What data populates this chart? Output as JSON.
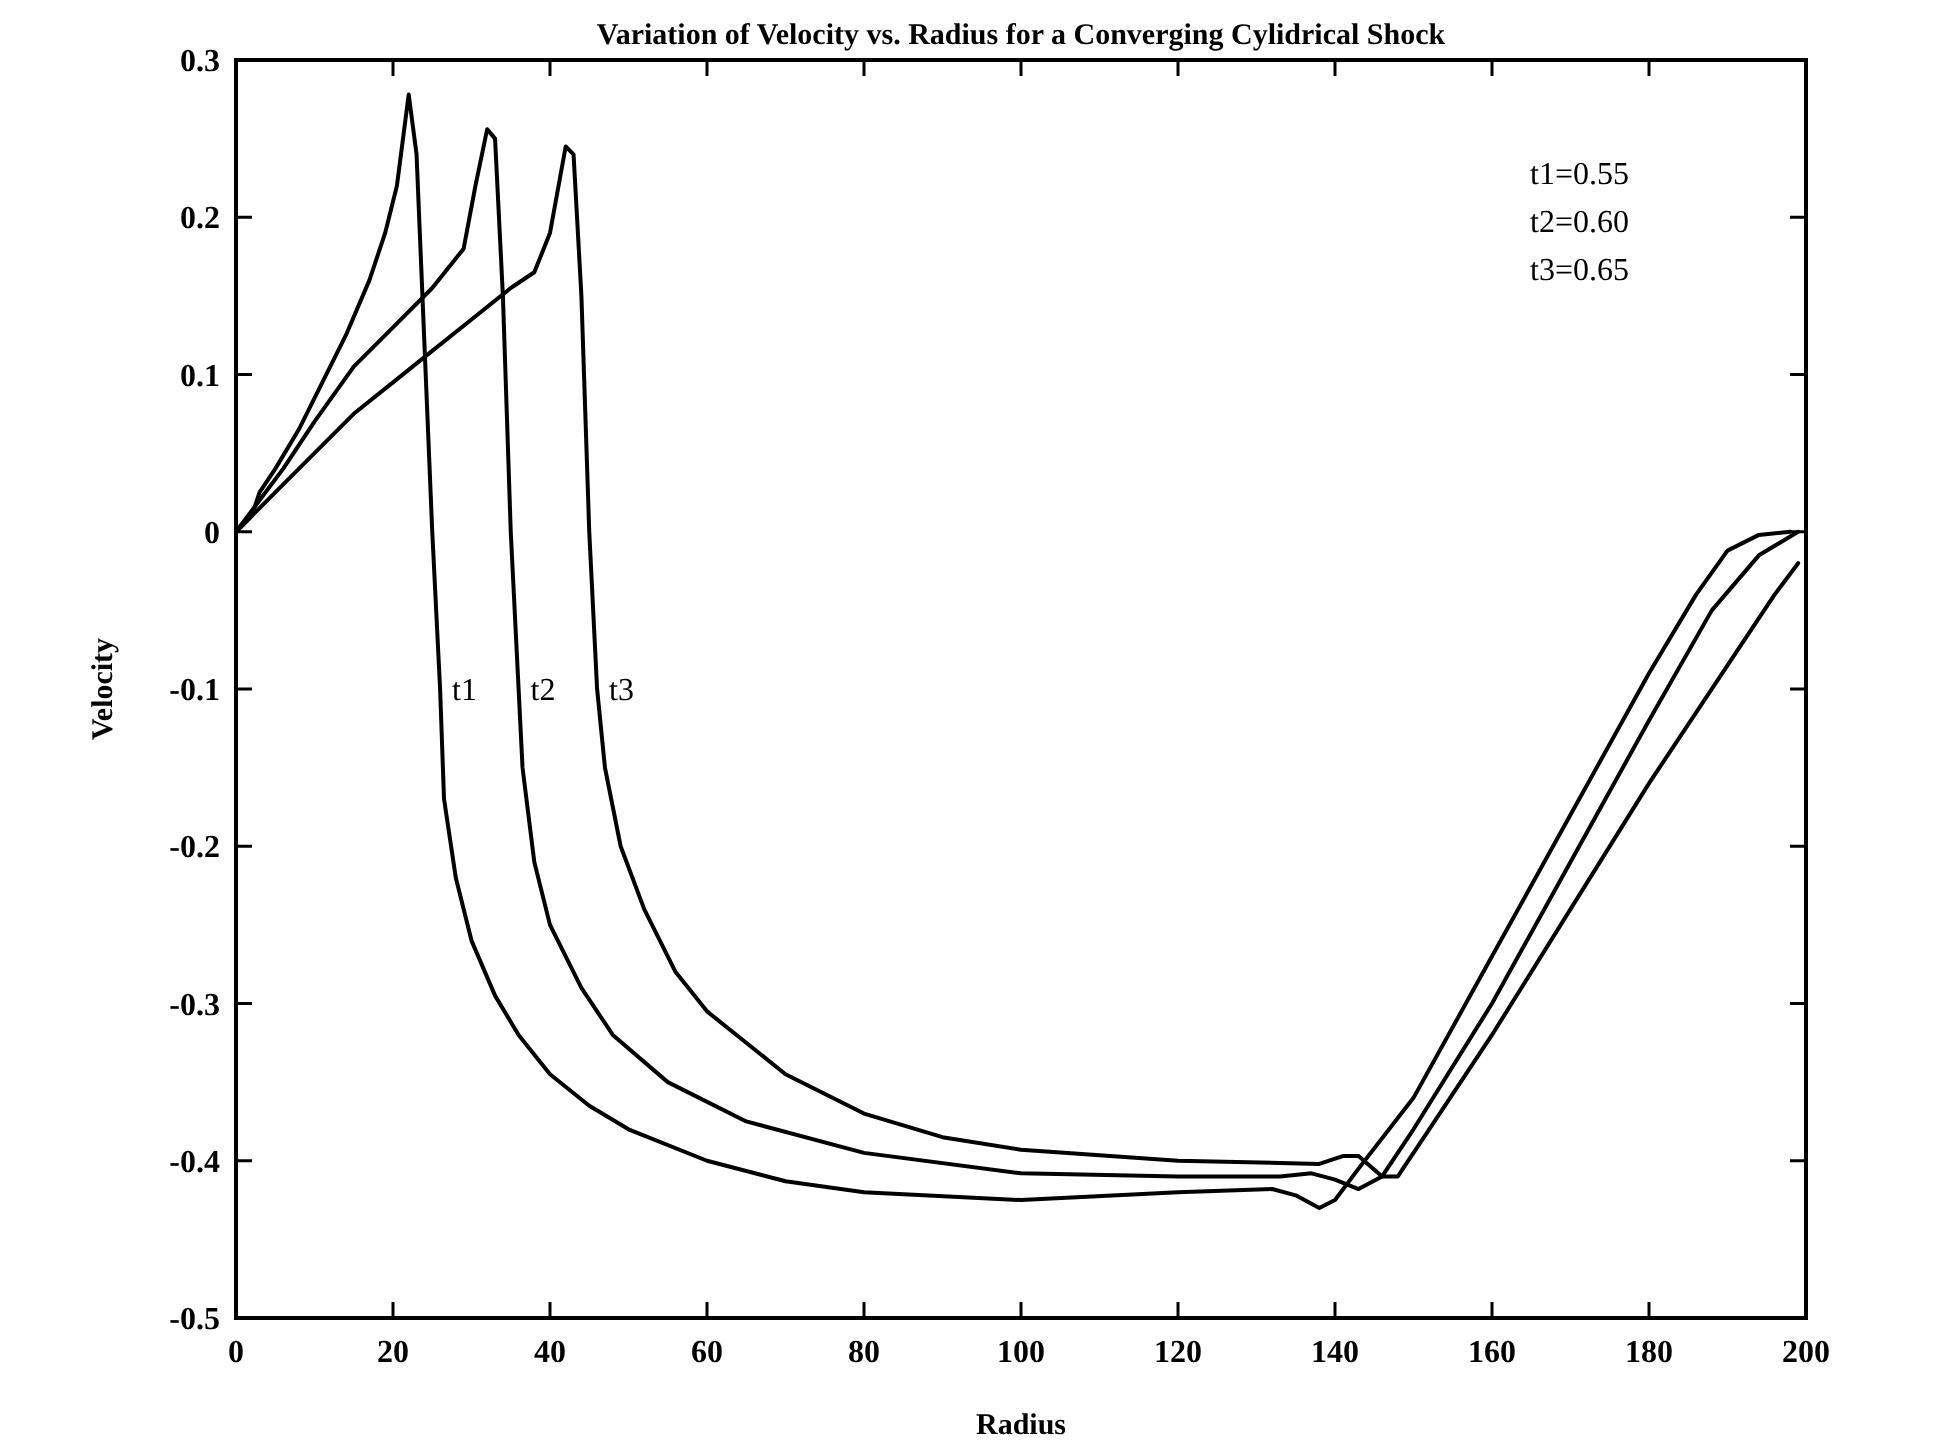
{
  "chart_data": {
    "type": "line",
    "title": "Variation of Velocity vs. Radius for a Converging Cylidrical Shock",
    "xlabel": "Radius",
    "ylabel": "Velocity",
    "xlim": [
      0,
      200
    ],
    "ylim": [
      -0.5,
      0.3
    ],
    "xticks": [
      0,
      20,
      40,
      60,
      80,
      100,
      120,
      140,
      160,
      180,
      200
    ],
    "yticks": [
      -0.5,
      -0.4,
      -0.3,
      -0.2,
      -0.1,
      0,
      0.1,
      0.2,
      0.3
    ],
    "grid": false,
    "marker": "none",
    "line_style": "solid",
    "series": [
      {
        "color": "#000000",
        "x": [
          0,
          2,
          3,
          5,
          8,
          11,
          14,
          17,
          19,
          20.5,
          22,
          23,
          24,
          25,
          26,
          26.5,
          28,
          30,
          33,
          36,
          40,
          45,
          50,
          60,
          70,
          80,
          100,
          120,
          132,
          135,
          138,
          140,
          143,
          150,
          160,
          170,
          180,
          186,
          190,
          194,
          198
        ],
        "values": [
          0,
          0.01,
          0.025,
          0.04,
          0.065,
          0.095,
          0.125,
          0.16,
          0.19,
          0.22,
          0.278,
          0.24,
          0.12,
          0,
          -0.1,
          -0.17,
          -0.22,
          -0.26,
          -0.295,
          -0.32,
          -0.345,
          -0.365,
          -0.38,
          -0.4,
          -0.413,
          -0.42,
          -0.425,
          -0.42,
          -0.418,
          -0.422,
          -0.43,
          -0.425,
          -0.405,
          -0.36,
          -0.27,
          -0.18,
          -0.09,
          -0.04,
          -0.012,
          -0.002,
          0
        ]
      },
      {
        "color": "#000000",
        "x": [
          0,
          3,
          6,
          10,
          15,
          20,
          25,
          29,
          30.5,
          32,
          33,
          34,
          35,
          36,
          36.5,
          38,
          40,
          44,
          48,
          55,
          65,
          80,
          100,
          120,
          133,
          137,
          140,
          143,
          146,
          150,
          160,
          170,
          180,
          188,
          194,
          199
        ],
        "values": [
          0,
          0.02,
          0.04,
          0.07,
          0.105,
          0.13,
          0.155,
          0.18,
          0.22,
          0.256,
          0.25,
          0.15,
          0,
          -0.1,
          -0.15,
          -0.21,
          -0.25,
          -0.29,
          -0.32,
          -0.35,
          -0.375,
          -0.395,
          -0.408,
          -0.41,
          -0.41,
          -0.408,
          -0.412,
          -0.418,
          -0.41,
          -0.38,
          -0.3,
          -0.21,
          -0.12,
          -0.05,
          -0.015,
          0
        ]
      },
      {
        "color": "#000000",
        "x": [
          0,
          5,
          10,
          15,
          20,
          25,
          30,
          35,
          38,
          40,
          42,
          43,
          44,
          45,
          46,
          47,
          49,
          52,
          56,
          60,
          70,
          80,
          90,
          100,
          120,
          138,
          141,
          143,
          146,
          148,
          152,
          160,
          170,
          180,
          190,
          196,
          199
        ],
        "values": [
          0,
          0.025,
          0.05,
          0.075,
          0.095,
          0.115,
          0.135,
          0.155,
          0.165,
          0.19,
          0.245,
          0.24,
          0.15,
          0,
          -0.1,
          -0.15,
          -0.2,
          -0.24,
          -0.28,
          -0.305,
          -0.345,
          -0.37,
          -0.385,
          -0.393,
          -0.4,
          -0.402,
          -0.397,
          -0.397,
          -0.41,
          -0.41,
          -0.38,
          -0.32,
          -0.24,
          -0.16,
          -0.085,
          -0.04,
          -0.02
        ]
      }
    ],
    "annotations": [
      {
        "text": "t1",
        "x": 26.5,
        "y": -0.1
      },
      {
        "text": "t2",
        "x": 36.5,
        "y": -0.1
      },
      {
        "text": "t3",
        "x": 46.5,
        "y": -0.1
      },
      "t1=0.55",
      "t2=0.60",
      "t3=0.65"
    ]
  }
}
